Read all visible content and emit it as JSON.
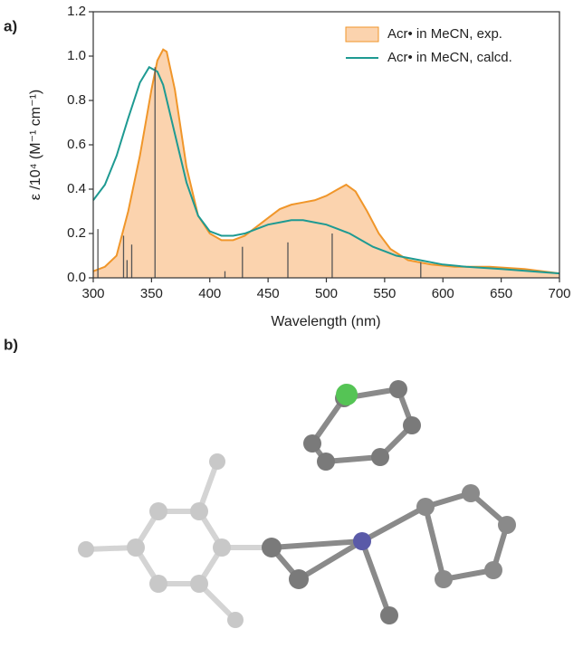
{
  "panel_labels": [
    "a)",
    "b)"
  ],
  "chart_data": {
    "type": "line",
    "x_label": "Wavelength (nm)",
    "y_label": "ε /10⁴ (M⁻¹ cm⁻¹)",
    "xlim": [
      300,
      700
    ],
    "ylim": [
      0,
      1.2
    ],
    "xticks": [
      300,
      350,
      400,
      450,
      500,
      550,
      600,
      650,
      700
    ],
    "yticks": [
      {
        "value": 0,
        "label": "0.0"
      },
      0.2,
      0.4,
      0.6,
      0.8,
      {
        "value": 1,
        "label": "1.0"
      },
      1.2
    ],
    "legend": "upper right",
    "series": [
      {
        "name": "Acr• in MeCN, exp.",
        "color": "#f0962a",
        "fill": "#fbd3ae",
        "x": [
          300,
          310,
          320,
          330,
          340,
          350,
          355,
          360,
          363,
          370,
          380,
          390,
          400,
          410,
          420,
          430,
          440,
          450,
          460,
          470,
          480,
          490,
          500,
          510,
          517,
          525,
          535,
          545,
          555,
          570,
          590,
          610,
          640,
          670,
          700
        ],
        "values": [
          0.03,
          0.05,
          0.1,
          0.3,
          0.55,
          0.85,
          0.98,
          1.03,
          1.02,
          0.85,
          0.5,
          0.28,
          0.2,
          0.17,
          0.17,
          0.19,
          0.23,
          0.27,
          0.31,
          0.33,
          0.34,
          0.35,
          0.37,
          0.4,
          0.42,
          0.39,
          0.3,
          0.2,
          0.13,
          0.08,
          0.06,
          0.05,
          0.05,
          0.04,
          0.02
        ]
      },
      {
        "name": "Acr• in MeCN, calcd.",
        "color": "#1e9a92",
        "x": [
          300,
          310,
          320,
          330,
          340,
          348,
          355,
          360,
          370,
          380,
          390,
          400,
          410,
          420,
          430,
          440,
          450,
          460,
          470,
          480,
          490,
          500,
          510,
          520,
          530,
          540,
          550,
          560,
          580,
          600,
          620,
          650,
          700
        ],
        "values": [
          0.35,
          0.42,
          0.55,
          0.72,
          0.88,
          0.95,
          0.93,
          0.87,
          0.65,
          0.43,
          0.28,
          0.21,
          0.19,
          0.19,
          0.2,
          0.22,
          0.24,
          0.25,
          0.26,
          0.26,
          0.25,
          0.24,
          0.22,
          0.2,
          0.17,
          0.14,
          0.12,
          0.1,
          0.08,
          0.06,
          0.05,
          0.04,
          0.02
        ]
      }
    ],
    "sticks": {
      "color": "#555555",
      "x": [
        304,
        326,
        329,
        333,
        353,
        413,
        428,
        467,
        505,
        581
      ],
      "values": [
        0.22,
        0.19,
        0.08,
        0.15,
        0.95,
        0.03,
        0.14,
        0.16,
        0.2,
        0.07
      ]
    }
  }
}
